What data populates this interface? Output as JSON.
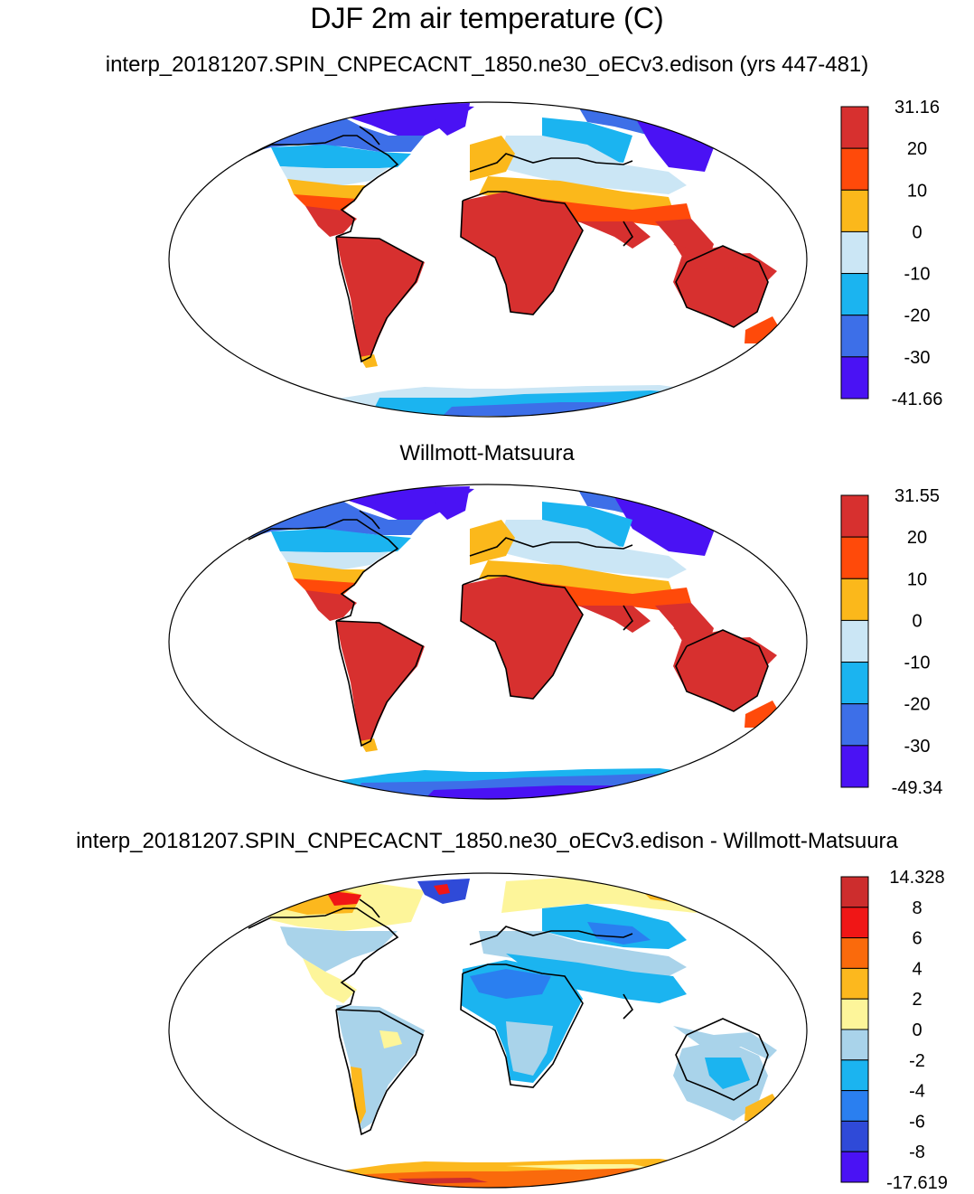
{
  "page": {
    "main_title": "DJF 2m air temperature (C)"
  },
  "colors": {
    "temp_palette": [
      "#4a12f4",
      "#3d6fe8",
      "#1bb4f0",
      "#cbe6f5",
      "#fbb81b",
      "#ff4a0a",
      "#d7302f"
    ],
    "diff_palette": [
      "#4a12f4",
      "#2f4ad8",
      "#2a7ff0",
      "#1bb4f0",
      "#a9d3ea",
      "#fdf59a",
      "#fcb81e",
      "#fa6a0c",
      "#f01616",
      "#cd2d2d"
    ],
    "land_missing": "#ffffff",
    "coastline": "#000000"
  },
  "chart_data": [
    {
      "type": "heatmap",
      "projection": "Robinson",
      "title": "interp_20181207.SPIN_CNPECACNT_1850.ne30_oECv3.edison (yrs 447-481)",
      "colorbar": {
        "min_label": "-41.66",
        "max_label": "31.16",
        "levels": [
          -30,
          -20,
          -10,
          0,
          10,
          20
        ],
        "tick_labels": [
          "31.16",
          "20",
          "10",
          "0",
          "-10",
          "-20",
          "-30",
          "-41.66"
        ]
      }
    },
    {
      "type": "heatmap",
      "projection": "Robinson",
      "title": "Willmott-Matsuura",
      "colorbar": {
        "min_label": "-49.34",
        "max_label": "31.55",
        "levels": [
          -30,
          -20,
          -10,
          0,
          10,
          20
        ],
        "tick_labels": [
          "31.55",
          "20",
          "10",
          "0",
          "-10",
          "-20",
          "-30",
          "-49.34"
        ]
      }
    },
    {
      "type": "heatmap",
      "projection": "Robinson",
      "title": "interp_20181207.SPIN_CNPECACNT_1850.ne30_oECv3.edison - Willmott-Matsuura",
      "colorbar": {
        "min_label": "-17.619",
        "max_label": "14.328",
        "levels": [
          -8,
          -6,
          -4,
          -2,
          0,
          2,
          4,
          6,
          8
        ],
        "tick_labels": [
          "14.328",
          "8",
          "6",
          "4",
          "2",
          "0",
          "-2",
          "-4",
          "-6",
          "-8",
          "-17.619"
        ]
      }
    }
  ]
}
